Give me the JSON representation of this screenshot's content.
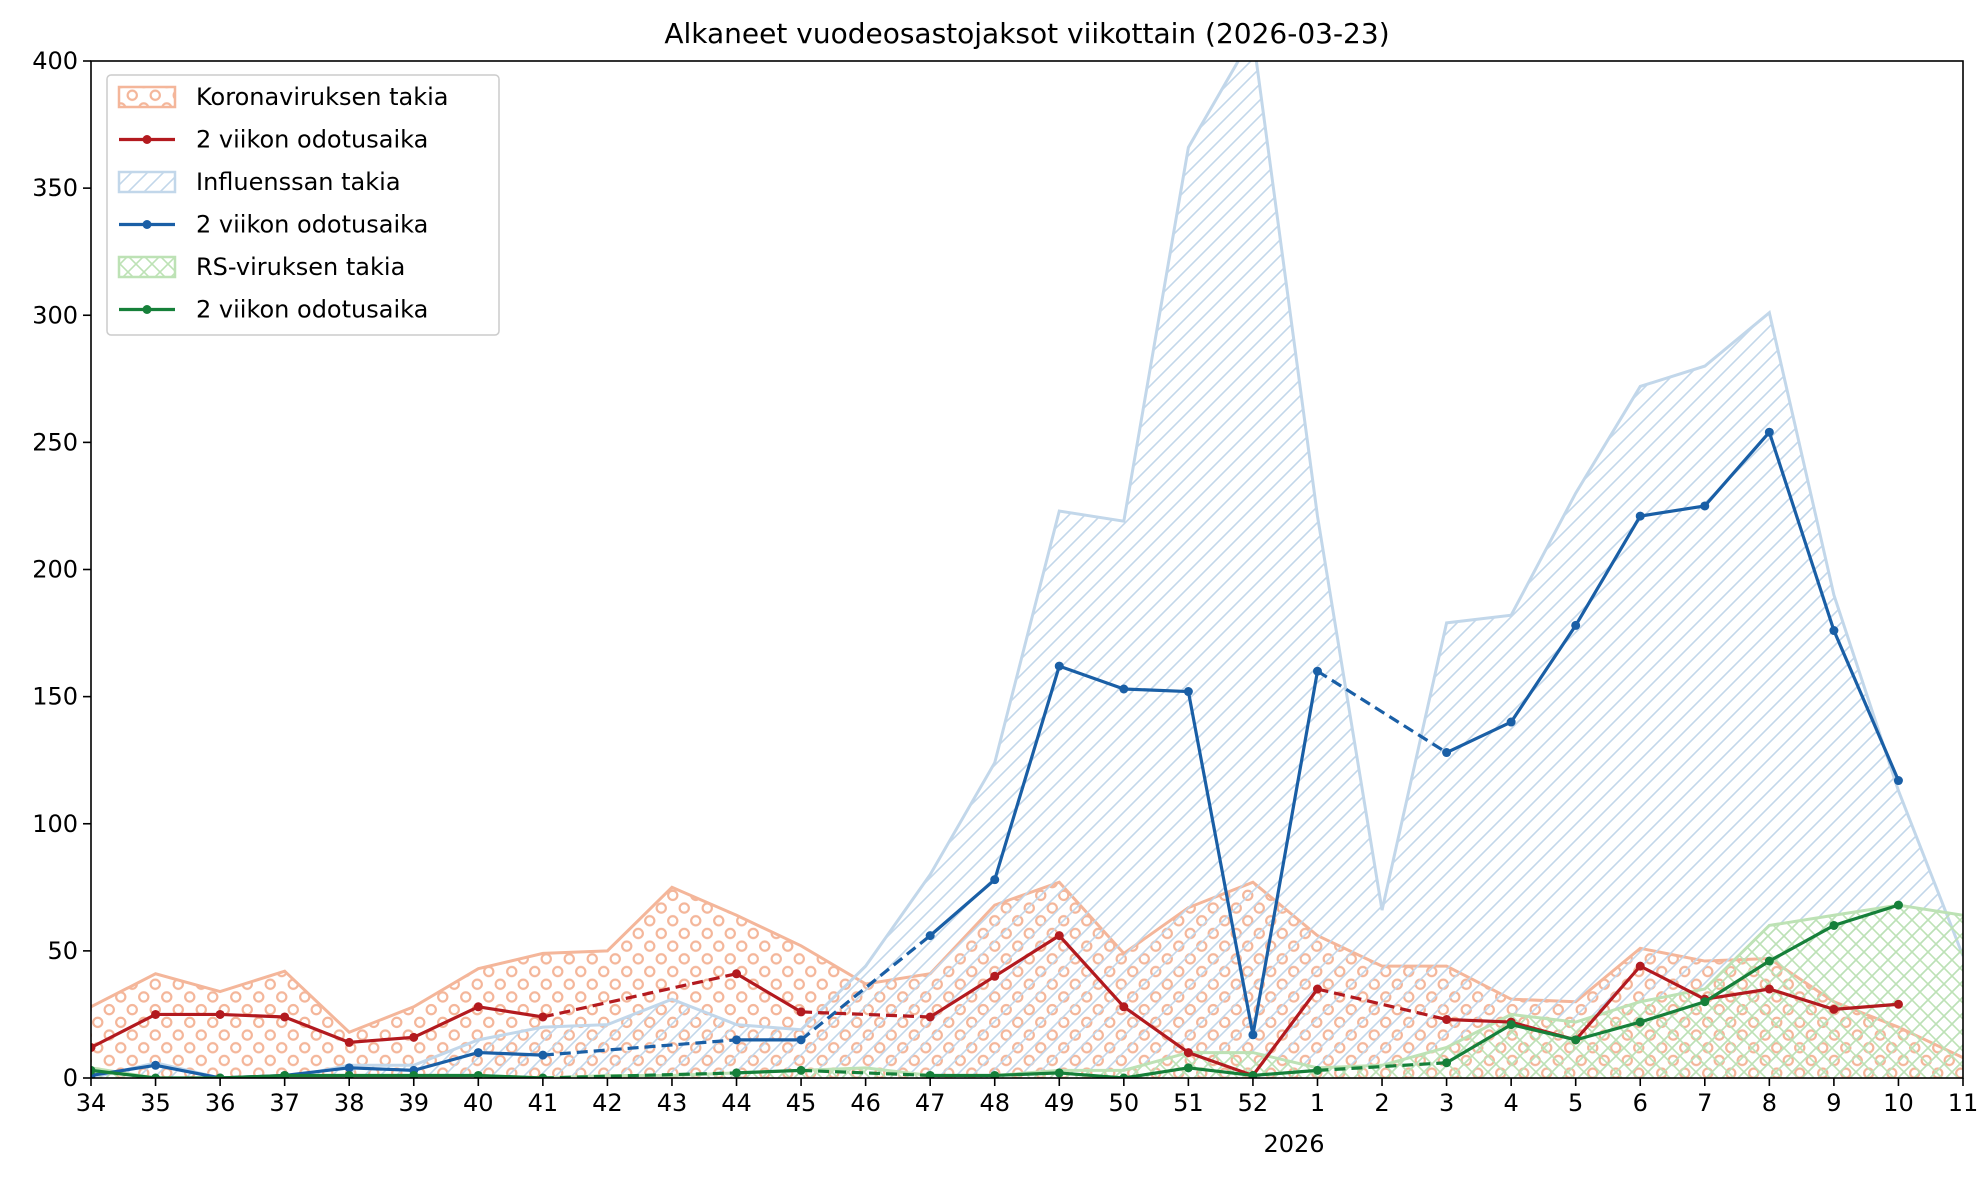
{
  "chart_data": {
    "type": "line",
    "title": "Alkaneet vuodeosastojaksot viikottain (2026-03-23)",
    "xlabel": "",
    "ylabel": "",
    "ylim": [
      0,
      400
    ],
    "yticks": [
      0,
      50,
      100,
      150,
      200,
      250,
      300,
      350,
      400
    ],
    "categories": [
      "34",
      "35",
      "36",
      "37",
      "38",
      "39",
      "40",
      "41",
      "42",
      "43",
      "44",
      "45",
      "46",
      "47",
      "48",
      "49",
      "50",
      "51",
      "52",
      "1",
      "2",
      "3",
      "4",
      "5",
      "6",
      "7",
      "8",
      "9",
      "10",
      "11"
    ],
    "year_label": "2026",
    "legend_position": "top-left",
    "grid": false,
    "areas": [
      {
        "name": "Koronaviruksen takia",
        "color": "#f4b69a",
        "pattern": "circles",
        "values": [
          28,
          41,
          34,
          42,
          18,
          28,
          43,
          49,
          50,
          75,
          64,
          52,
          37,
          41,
          68,
          77,
          49,
          67,
          77,
          56,
          44,
          44,
          31,
          30,
          51,
          46,
          47,
          30,
          20,
          8
        ]
      },
      {
        "name": "Influenssan takia",
        "color": "#c2d7ea",
        "pattern": "diagonal",
        "values": [
          0,
          6,
          0,
          0,
          5,
          5,
          15,
          20,
          21,
          31,
          21,
          19,
          44,
          80,
          124,
          223,
          219,
          366,
          410,
          221,
          66,
          179,
          182,
          230,
          272,
          280,
          301,
          190,
          113,
          48
        ]
      },
      {
        "name": "RS-viruksen takia",
        "color": "#bde2b5",
        "pattern": "crosshatch",
        "values": [
          4,
          0,
          0,
          0,
          1,
          0,
          1,
          0,
          1,
          1,
          2,
          3,
          4,
          1,
          1,
          3,
          3,
          10,
          10,
          4,
          5,
          12,
          25,
          22,
          30,
          35,
          60,
          64,
          68,
          64
        ]
      }
    ],
    "lines": [
      {
        "name": "2 viikon odotusaika",
        "color": "#b31a1f",
        "values": [
          12,
          25,
          25,
          24,
          14,
          16,
          28,
          24,
          null,
          null,
          41,
          26,
          null,
          24,
          40,
          56,
          28,
          10,
          1,
          35,
          null,
          23,
          22,
          15,
          44,
          31,
          35,
          27,
          29,
          null
        ],
        "dashed_gaps": [
          [
            7,
            10
          ],
          [
            11,
            13
          ],
          [
            19,
            21
          ]
        ]
      },
      {
        "name": "2 viikon odotusaika",
        "color": "#1a5fa6",
        "values": [
          1,
          5,
          0,
          1,
          4,
          3,
          10,
          9,
          null,
          null,
          15,
          15,
          null,
          56,
          78,
          162,
          153,
          152,
          17,
          160,
          null,
          128,
          140,
          178,
          221,
          225,
          254,
          176,
          117,
          null
        ],
        "dashed_gaps": [
          [
            7,
            10
          ],
          [
            11,
            13
          ],
          [
            19,
            21
          ]
        ]
      },
      {
        "name": "2 viikon odotusaika",
        "color": "#16803a",
        "values": [
          3,
          0,
          0,
          1,
          1,
          1,
          1,
          0,
          null,
          null,
          2,
          3,
          null,
          1,
          1,
          2,
          0,
          4,
          1,
          3,
          null,
          6,
          21,
          15,
          22,
          30,
          46,
          60,
          68,
          null
        ],
        "dashed_gaps": [
          [
            7,
            10
          ],
          [
            11,
            13
          ],
          [
            19,
            21
          ]
        ]
      }
    ],
    "legend_order": [
      "area:0",
      "line:0",
      "area:1",
      "line:1",
      "area:2",
      "line:2"
    ]
  }
}
